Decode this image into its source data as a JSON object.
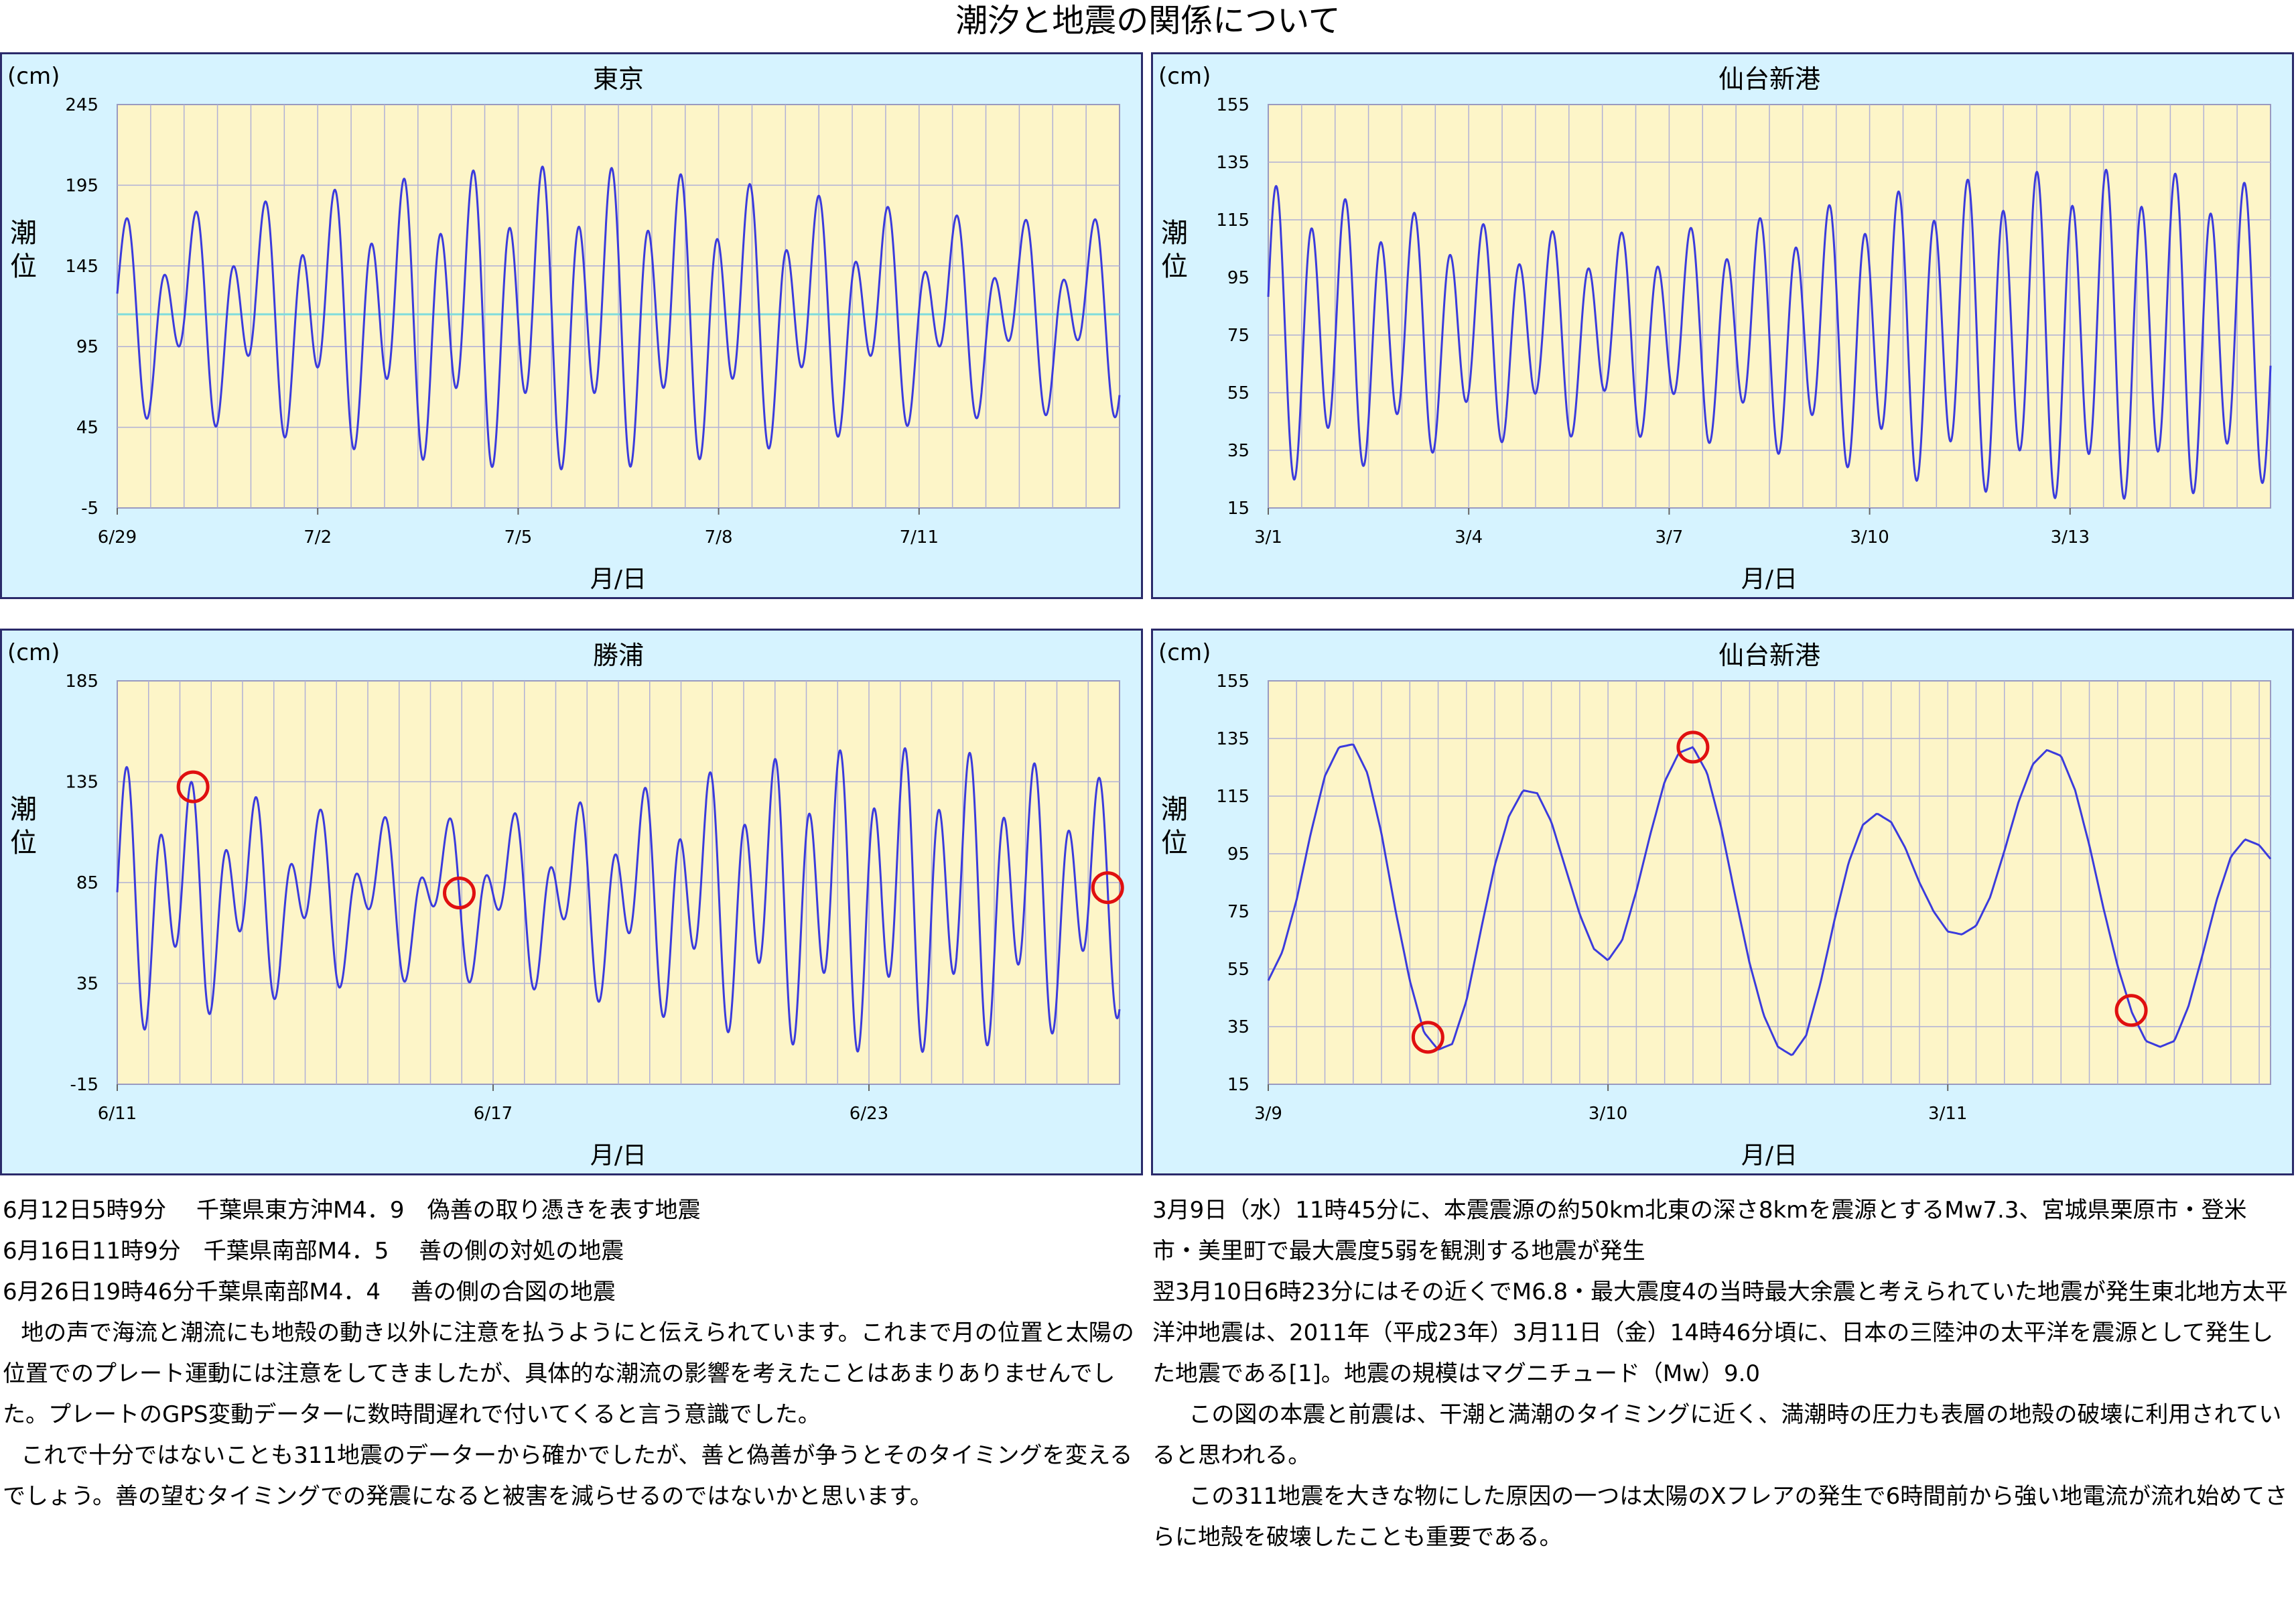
{
  "page_title": "潮汐と地震の関係について",
  "colors": {
    "panel_bg": "#d6f3ff",
    "plot_bg": "#fdf5c8",
    "grid": "#b0b0d6",
    "line": "#3b3bdd",
    "mean_line": "#7fdcdc",
    "marker": "#e01010"
  },
  "chart_data": [
    {
      "type": "line",
      "title": "東京",
      "unit_label": "(cm)",
      "ylabel": "潮位",
      "xlabel": "月/日",
      "x_ticks": [
        "6/29",
        "7/2",
        "7/5",
        "7/8",
        "7/11"
      ],
      "y_ticks": [
        "245",
        "195",
        "145",
        "95",
        "45",
        "-5"
      ],
      "ylim": [
        -5,
        245
      ],
      "xlim_days": [
        0,
        15
      ],
      "tick_days": [
        0,
        3,
        6,
        9,
        12
      ],
      "grid": true,
      "reference_line": 115,
      "tide": {
        "mean": 115,
        "diurnal_amp": 30,
        "semidiurnal_amp_min": 38,
        "semidiurnal_amp_max": 72,
        "spring_day": 14,
        "phase_hours": 4
      },
      "markers_day": []
    },
    {
      "type": "line",
      "title": "仙台新港",
      "unit_label": "(cm)",
      "ylabel": "潮位",
      "xlabel": "月/日",
      "x_ticks": [
        "3/1",
        "3/4",
        "3/7",
        "3/10",
        "3/13"
      ],
      "y_ticks": [
        "155",
        "135",
        "115",
        "95",
        "75",
        "55",
        "35",
        "15"
      ],
      "ylim": [
        15,
        155
      ],
      "xlim_days": [
        0,
        15
      ],
      "tick_days": [
        0,
        3,
        6,
        9,
        12
      ],
      "grid": true,
      "tide": {
        "mean": 76,
        "diurnal_amp": 10,
        "semidiurnal_amp_min": 28,
        "semidiurnal_amp_max": 50,
        "spring_day": 5,
        "phase_hours": 3
      },
      "markers_day": []
    },
    {
      "type": "line",
      "title": "勝浦",
      "unit_label": "(cm)",
      "ylabel": "潮位",
      "xlabel": "月/日",
      "x_ticks": [
        "6/11",
        "6/17",
        "6/23"
      ],
      "y_ticks": [
        "185",
        "135",
        "85",
        "35",
        "-15"
      ],
      "ylim": [
        -15,
        185
      ],
      "xlim_days": [
        0,
        16
      ],
      "tick_days": [
        0,
        6,
        12
      ],
      "grid": true,
      "tide": {
        "mean": 78,
        "diurnal_amp": 24,
        "semidiurnal_amp_min": 22,
        "semidiurnal_amp_max": 58,
        "spring_day": 5,
        "phase_hours": 4
      },
      "markers_day": [
        1.21,
        5.46,
        15.81
      ]
    },
    {
      "type": "line",
      "title": "仙台新港",
      "unit_label": "(cm)",
      "ylabel": "潮位",
      "xlabel": "月/日",
      "x_ticks": [
        "3/9",
        "3/10",
        "3/11"
      ],
      "y_ticks": [
        "155",
        "135",
        "115",
        "95",
        "75",
        "55",
        "35",
        "15"
      ],
      "ylim": [
        15,
        155
      ],
      "xlim_days": [
        0,
        2.95
      ],
      "tick_days": [
        0,
        1,
        2
      ],
      "grid": true,
      "hourly": {
        "start_hour": 0,
        "values": [
          51,
          61,
          79,
          102,
          122,
          132,
          133,
          123,
          102,
          75,
          51,
          33,
          27,
          29,
          44,
          68,
          91,
          108,
          117,
          116,
          106,
          90,
          74,
          62,
          58,
          65,
          82,
          102,
          120,
          130,
          132,
          123,
          104,
          80,
          57,
          39,
          28,
          25,
          32,
          50,
          72,
          92,
          105,
          109,
          106,
          97,
          85,
          75,
          68,
          67,
          70,
          80,
          96,
          113,
          126,
          131,
          129,
          117,
          98,
          76,
          56,
          40,
          30,
          28,
          30,
          42,
          60,
          79,
          94,
          100,
          98,
          92,
          85,
          80
        ]
      },
      "markers_day": [
        0.47,
        1.25,
        2.54
      ]
    }
  ],
  "text_left": [
    "6月12日5時9分　 千葉県東方沖M4．9　偽善の取り憑きを表す地震",
    "6月16日11時9分　千葉県南部M4．5　 善の側の対処の地震",
    "6月26日19時46分千葉県南部M4．4　 善の側の合図の地震",
    "地の声で海流と潮流にも地殻の動き以外に注意を払うようにと伝えられています。これまで月の位置と太陽の位置でのプレート運動には注意をしてきましたが、具体的な潮流の影響を考えたことはあまりありませんでした。プレートのGPS変動データーに数時間遅れで付いてくると言う意識でした。",
    "これで十分ではないことも311地震のデーターから確かでしたが、善と偽善が争うとそのタイミングを変えるでしょう。善の望むタイミングでの発震になると被害を減らせるのではないかと思います。"
  ],
  "text_right": [
    "3月9日（水）11時45分に、本震震源の約50km北東の深さ8kmを震源とするMw7.3、宮城県栗原市・登米市・美里町で最大震度5弱を観測する地震が発生",
    "翌3月10日6時23分にはその近くでM6.8・最大震度4の当時最大余震と考えられていた地震が発生東北地方太平洋沖地震は、2011年（平成23年）3月11日（金）14時46分頃に、日本の三陸沖の太平洋を震源として発生した地震である[1]。地震の規模はマグニチュード（Mw）9.0",
    "この図の本震と前震は、干潮と満潮のタイミングに近く、満潮時の圧力も表層の地殻の破壊に利用されていると思われる。",
    "この311地震を大きな物にした原因の一つは太陽のXフレアの発生で6時間前から強い地電流が流れ始めてさらに地殻を破壊したことも重要である。"
  ]
}
